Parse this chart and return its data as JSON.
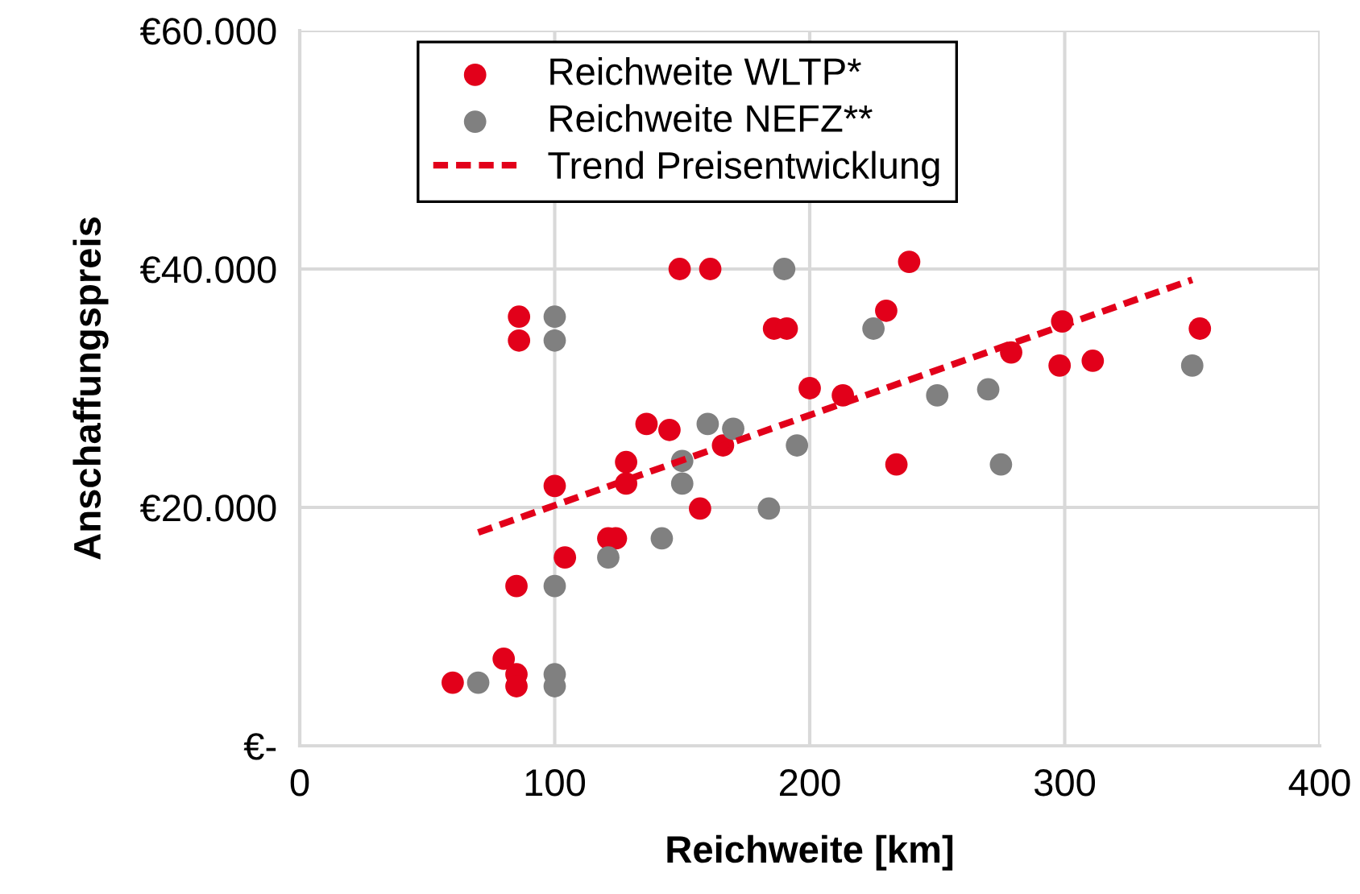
{
  "chart_data": {
    "type": "scatter",
    "xlabel": "Reichweite [km]",
    "ylabel": "Anschaffungspreis",
    "xlim": [
      0,
      400
    ],
    "xticks": [
      0,
      100,
      200,
      300,
      400
    ],
    "ylim": [
      0,
      60000
    ],
    "yticks": [
      {
        "value": 0,
        "label": "€-"
      },
      {
        "value": 20000,
        "label": "€20.000"
      },
      {
        "value": 40000,
        "label": "€40.000"
      },
      {
        "value": 60000,
        "label": "€60.000"
      }
    ],
    "grid": true,
    "legend": "top",
    "marker": "circle",
    "series": [
      {
        "name": "Reichweite WLTP*",
        "color": "#e2001a",
        "x": [
          149,
          161,
          86,
          86,
          186,
          191,
          200,
          136,
          145,
          100,
          128,
          128,
          166,
          157,
          121,
          124,
          104,
          85,
          80,
          85,
          85,
          60,
          239,
          230,
          213,
          279,
          299,
          298,
          311,
          353,
          234
        ],
        "values": [
          40000,
          40000,
          36000,
          34000,
          35000,
          35000,
          30000,
          27000,
          26500,
          21800,
          23800,
          22000,
          25200,
          19900,
          17400,
          17400,
          15800,
          13400,
          7300,
          6000,
          5000,
          5300,
          40600,
          36500,
          29400,
          33000,
          35600,
          31900,
          32300,
          35000,
          23600
        ]
      },
      {
        "name": "Reichweite NEFZ**",
        "color": "#808080",
        "x": [
          190,
          100,
          100,
          160,
          170,
          195,
          150,
          150,
          184,
          142,
          121,
          100,
          100,
          100,
          70,
          225,
          250,
          270,
          275,
          350
        ],
        "values": [
          40000,
          36000,
          34000,
          27000,
          26600,
          25200,
          23900,
          22000,
          19900,
          17400,
          15800,
          13400,
          6000,
          5000,
          5300,
          35000,
          29400,
          29900,
          23600,
          31900
        ]
      },
      {
        "name": "Trend Preisentwicklung",
        "type": "line",
        "line_style": "dashed",
        "marker": "none",
        "color": "#e2001a",
        "x": [
          70,
          350
        ],
        "values": [
          17900,
          39100
        ]
      }
    ]
  }
}
